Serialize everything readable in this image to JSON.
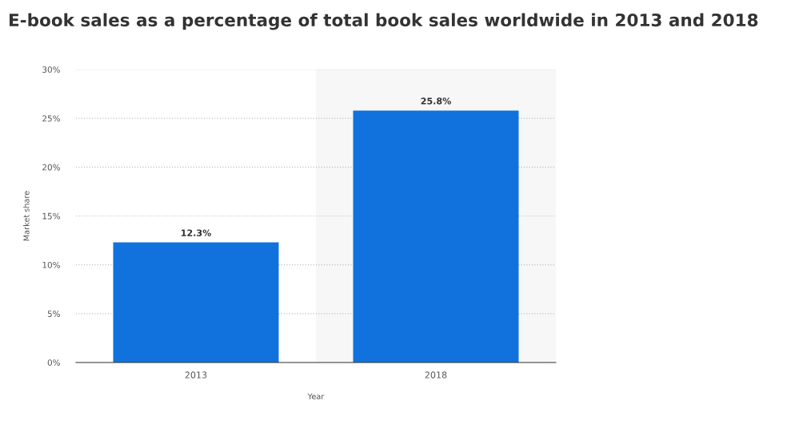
{
  "chart_data": {
    "type": "bar",
    "title": "E-book sales as a percentage of total book sales worldwide in 2013 and 2018",
    "xlabel": "Year",
    "ylabel": "Market share",
    "categories": [
      "2013",
      "2018"
    ],
    "values": [
      12.3,
      25.8
    ],
    "color": "#1172de",
    "value_labels": [
      "12.3%",
      "25.8%"
    ],
    "ylim": [
      0,
      30
    ],
    "yticks": [
      {
        "value": 0,
        "label": "0%"
      },
      {
        "value": 5,
        "label": "5%"
      },
      {
        "value": 10,
        "label": "10%"
      },
      {
        "value": 15,
        "label": "15%"
      },
      {
        "value": 20,
        "label": "20%"
      },
      {
        "value": 25,
        "label": "25%"
      },
      {
        "value": 30,
        "label": "30%"
      }
    ],
    "grid": "y",
    "bands": [
      {
        "axis": "x",
        "from": "2018",
        "to": "2018",
        "color": "#f7f7f7"
      }
    ]
  }
}
